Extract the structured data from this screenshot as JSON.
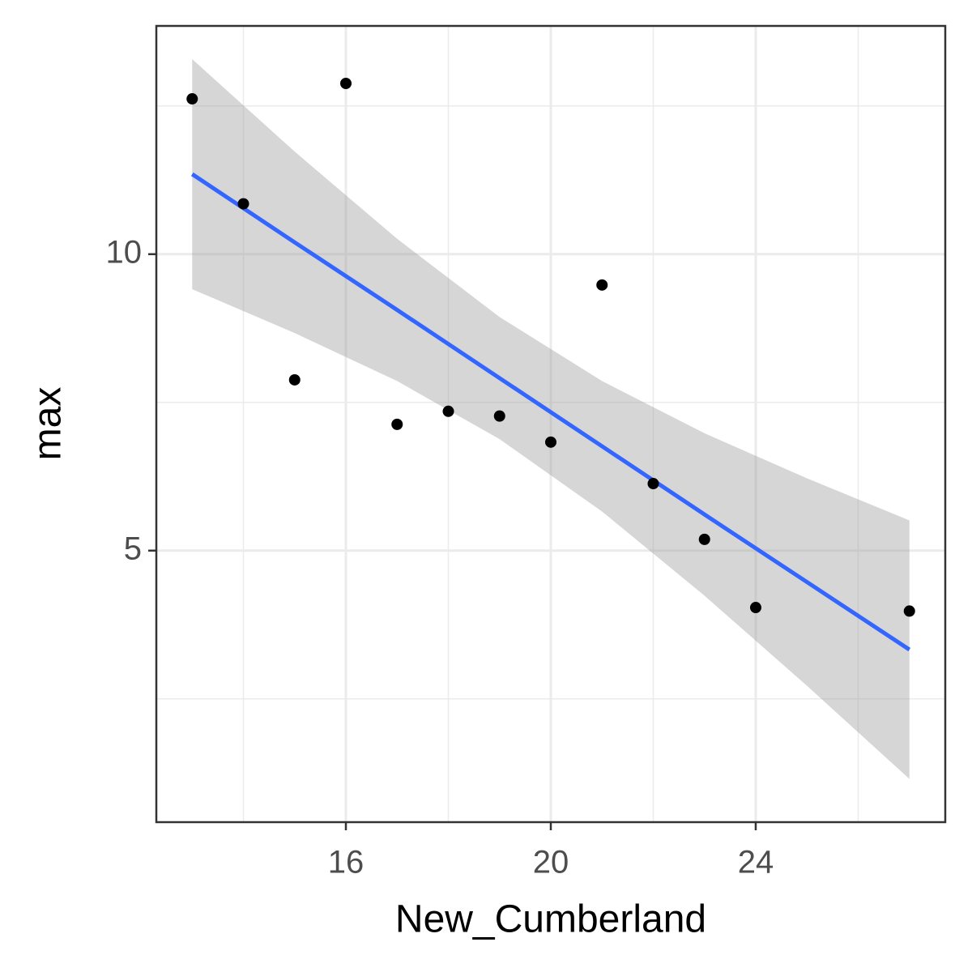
{
  "chart_data": {
    "type": "scatter",
    "x_label": "New_Cumberland",
    "y_label": "max",
    "x": [
      13,
      14,
      15,
      16,
      17,
      18,
      19,
      20,
      21,
      22,
      23,
      24,
      27
    ],
    "values": [
      12.62,
      10.85,
      7.88,
      12.88,
      7.13,
      7.35,
      7.27,
      6.83,
      9.48,
      6.13,
      5.19,
      4.04,
      3.98
    ],
    "color": "#000000",
    "fit": {
      "color": "#3366ff",
      "band_color": "#999999",
      "x": [
        13,
        15,
        17,
        19,
        21,
        23,
        25,
        27
      ],
      "y": [
        11.35,
        10.2,
        9.06,
        7.91,
        6.76,
        5.61,
        4.47,
        3.33
      ],
      "upper": [
        13.29,
        11.73,
        10.26,
        8.94,
        7.86,
        6.98,
        6.22,
        5.51
      ],
      "lower": [
        9.41,
        8.67,
        7.86,
        6.88,
        5.66,
        4.24,
        2.72,
        1.15
      ]
    },
    "xlim": [
      12.3,
      27.7
    ],
    "ylim": [
      0.42,
      13.85
    ],
    "xticks": [
      16,
      20,
      24
    ],
    "yticks": [
      5,
      10
    ],
    "x_minor_ticks": [
      14,
      18,
      22,
      26
    ],
    "y_minor_ticks": [
      2.5,
      7.5,
      12.5
    ],
    "grid": true
  }
}
